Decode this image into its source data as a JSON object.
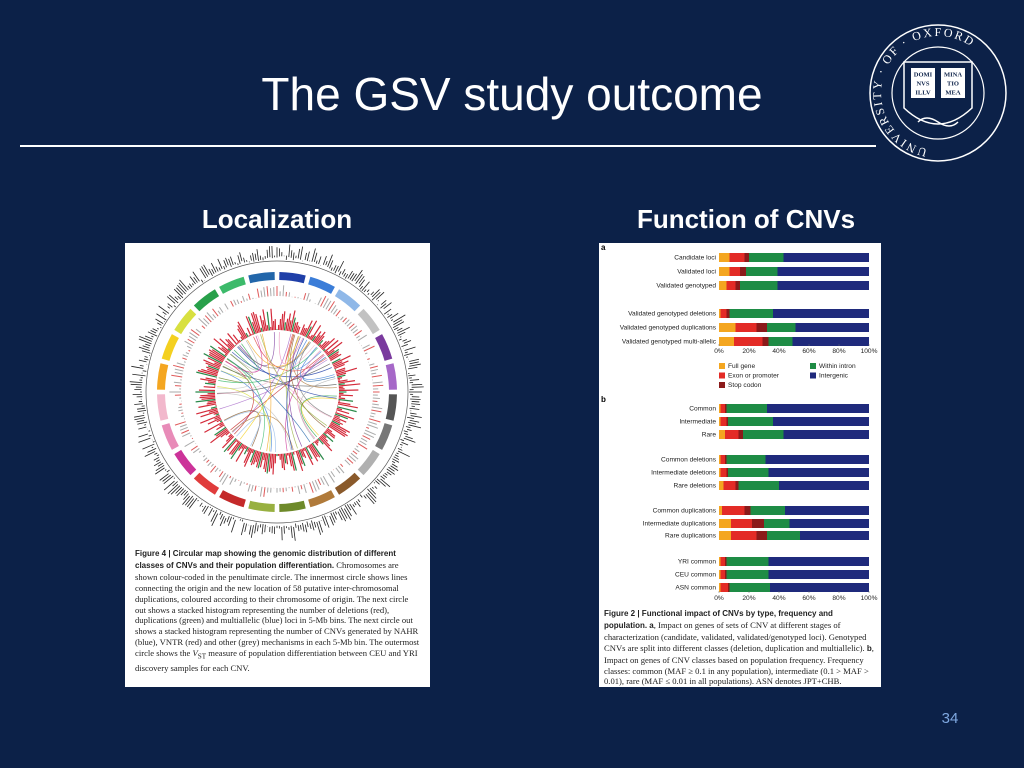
{
  "slide": {
    "title": "The GSV study outcome",
    "page_number": "34"
  },
  "logo": {
    "ring_text": "UNIVERSITY · OF · OXFORD",
    "book_left": [
      "DOMI",
      "NVS",
      "ILLV"
    ],
    "book_right": [
      "MINA",
      "TIO",
      "MEA"
    ]
  },
  "left": {
    "heading": "Localization",
    "caption_title": "Figure 4 | Circular map showing the genomic distribution of different classes of CNVs and their population differentiation.",
    "caption_parts": [
      " Chromosomes are shown colour-coded in the penultimate circle. The innermost circle shows lines connecting the origin and the new location of 58 putative inter-chromosomal duplications, coloured according to their chromosome of origin. The next circle out shows a stacked histogram representing the number of deletions (red), duplications (green) and multiallelic (blue) loci in 5-Mb bins. The next circle out shows a stacked histogram representing the number of CNVs generated by NAHR (blue), VNTR (red) and other (grey) mechanisms in each 5-Mb bin. The outermost circle shows the ",
      "V",
      "ST",
      " measure of population differentiation between CEU and YRI discovery samples for each CNV."
    ]
  },
  "right": {
    "heading": "Function of CNVs",
    "caption_title": "Figure 2 | Functional impact of CNVs by type, frequency and population.",
    "caption_parts": [
      " ",
      "a",
      ", Impact on genes of sets of CNV at different stages of characterization (candidate, validated, validated/genotyped loci). Genotyped CNVs are split into different classes (deletion, duplication and multiallelic). ",
      "b",
      ", Impact on genes of CNV classes based on population frequency. Frequency classes: common (MAF ≥ 0.1 in any population), intermediate (0.1 > MAF > 0.01), rare (MAF ≤ 0.01 in all populations). ASN denotes JPT+CHB."
    ]
  },
  "chart_data": [
    {
      "type": "stacked-bar",
      "label": "a",
      "categories": [
        "Candidate loci",
        "Validated loci",
        "Validated genotyped",
        "Validated genotyped deletions",
        "Validated genotyped duplications",
        "Validated genotyped multi-allelic"
      ],
      "series": [
        {
          "name": "Full gene",
          "color": "#f4a620",
          "values": [
            7,
            7,
            5,
            1,
            11,
            10
          ]
        },
        {
          "name": "Exon or promoter",
          "color": "#e32b26",
          "values": [
            10,
            7,
            6,
            4,
            14,
            19
          ]
        },
        {
          "name": "Stop codon",
          "color": "#8b1a1a",
          "values": [
            3,
            4,
            3,
            2,
            7,
            4
          ]
        },
        {
          "name": "Within intron",
          "color": "#1e8c45",
          "values": [
            23,
            21,
            25,
            29,
            19,
            16
          ]
        },
        {
          "name": "Intergenic",
          "color": "#1f2a7c",
          "values": [
            57,
            61,
            61,
            64,
            49,
            51
          ]
        }
      ],
      "xlim": [
        0,
        100
      ],
      "xticks": [
        {
          "value": 0,
          "label": "0%"
        },
        {
          "value": 20,
          "label": "20%"
        },
        {
          "value": 40,
          "label": "40%"
        },
        {
          "value": 60,
          "label": "60%"
        },
        {
          "value": 80,
          "label": "80%"
        },
        {
          "value": 100,
          "label": "100%"
        }
      ]
    },
    {
      "type": "stacked-bar",
      "label": "b",
      "categories": [
        "Common",
        "Intermediate",
        "Rare",
        "Common deletions",
        "Intermediate deletions",
        "Rare deletions",
        "Common duplications",
        "Intermediate duplications",
        "Rare duplications",
        "YRI common",
        "CEU common",
        "ASN common"
      ],
      "series": [
        {
          "color": "#f4a620",
          "values": [
            1,
            1,
            4,
            1,
            1,
            3,
            2,
            8,
            8,
            1,
            1,
            1
          ]
        },
        {
          "color": "#e32b26",
          "values": [
            3,
            4,
            9,
            3,
            4,
            8,
            15,
            14,
            17,
            3,
            3,
            5
          ]
        },
        {
          "color": "#8b1a1a",
          "values": [
            1,
            1,
            3,
            1,
            1,
            2,
            4,
            8,
            7,
            1,
            1,
            1
          ]
        },
        {
          "color": "#1e8c45",
          "values": [
            27,
            30,
            27,
            26,
            27,
            27,
            23,
            17,
            22,
            28,
            28,
            27
          ]
        },
        {
          "color": "#1f2a7c",
          "values": [
            68,
            64,
            57,
            69,
            67,
            60,
            56,
            53,
            46,
            67,
            67,
            66
          ]
        }
      ],
      "xlim": [
        0,
        100
      ],
      "xticks": [
        {
          "value": 0,
          "label": "0%"
        },
        {
          "value": 20,
          "label": "20%"
        },
        {
          "value": 40,
          "label": "40%"
        },
        {
          "value": 60,
          "label": "60%"
        },
        {
          "value": 80,
          "label": "80%"
        },
        {
          "value": 100,
          "label": "100%"
        }
      ]
    }
  ]
}
